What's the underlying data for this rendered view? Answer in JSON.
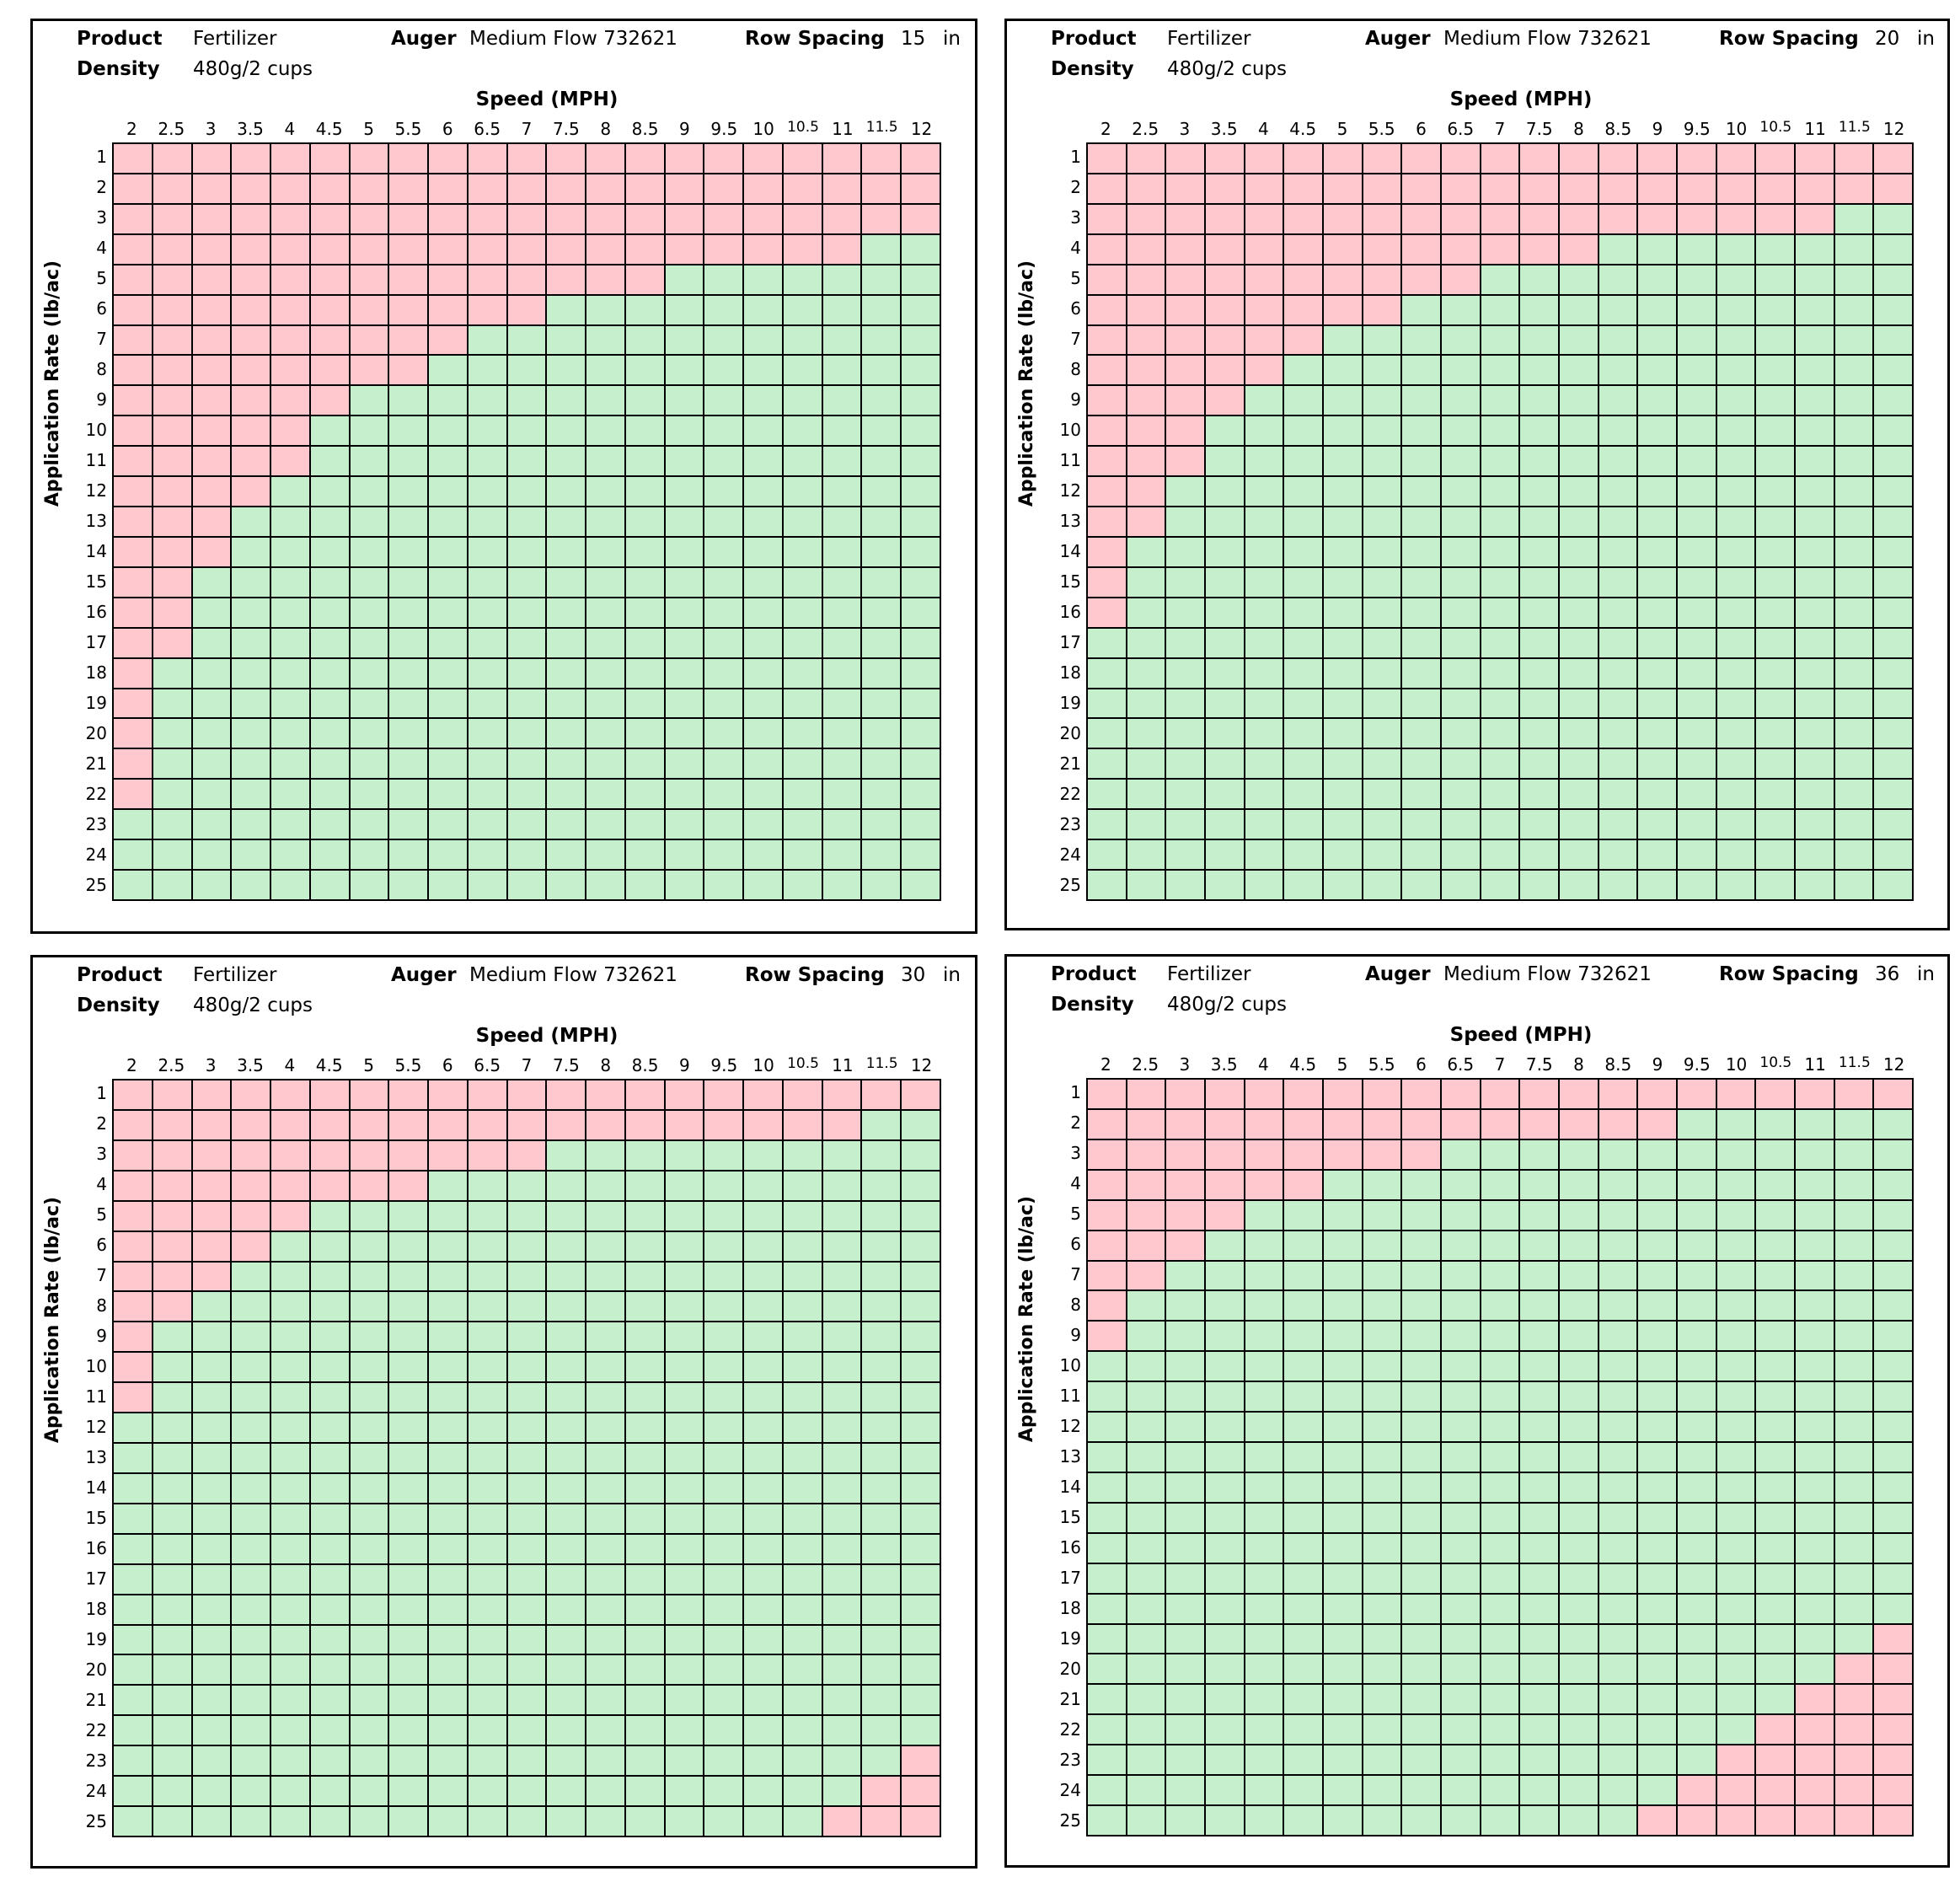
{
  "labels": {
    "product": "Product",
    "density": "Density",
    "auger": "Auger",
    "row_spacing": "Row Spacing",
    "unit": "in",
    "speed_title": "Speed (MPH)",
    "y_label": "Application Rate (lb/ac)"
  },
  "colors": {
    "ok": "#c6efce",
    "not_ok": "#ffc7ce"
  },
  "chart_data": [
    {
      "type": "heatmap",
      "product": "Fertilizer",
      "density": "480g/2 cups",
      "auger": "Medium Flow 732621",
      "row_spacing": "15",
      "x": [
        "2",
        "2.5",
        "3",
        "3.5",
        "4",
        "4.5",
        "5",
        "5.5",
        "6",
        "6.5",
        "7",
        "7.5",
        "8",
        "8.5",
        "9",
        "9.5",
        "10",
        "10.5",
        "11",
        "11.5",
        "12"
      ],
      "y": [
        1,
        2,
        3,
        4,
        5,
        6,
        7,
        8,
        9,
        10,
        11,
        12,
        13,
        14,
        15,
        16,
        17,
        18,
        19,
        20,
        21,
        22,
        23,
        24,
        25
      ],
      "min_rate_by_speed": [
        23,
        18,
        15,
        13,
        12,
        10,
        9,
        9,
        8,
        7,
        7,
        6,
        6,
        6,
        5,
        5,
        5,
        5,
        5,
        4,
        4
      ],
      "max_rate_by_speed": [
        25,
        25,
        25,
        25,
        25,
        25,
        25,
        25,
        25,
        25,
        25,
        25,
        25,
        25,
        25,
        25,
        25,
        25,
        25,
        25,
        25
      ]
    },
    {
      "type": "heatmap",
      "product": "Fertilizer",
      "density": "480g/2 cups",
      "auger": "Medium Flow 732621",
      "row_spacing": "20",
      "x": [
        "2",
        "2.5",
        "3",
        "3.5",
        "4",
        "4.5",
        "5",
        "5.5",
        "6",
        "6.5",
        "7",
        "7.5",
        "8",
        "8.5",
        "9",
        "9.5",
        "10",
        "10.5",
        "11",
        "11.5",
        "12"
      ],
      "y": [
        1,
        2,
        3,
        4,
        5,
        6,
        7,
        8,
        9,
        10,
        11,
        12,
        13,
        14,
        15,
        16,
        17,
        18,
        19,
        20,
        21,
        22,
        23,
        24,
        25
      ],
      "min_rate_by_speed": [
        17,
        14,
        12,
        10,
        9,
        8,
        7,
        7,
        6,
        6,
        5,
        5,
        5,
        4,
        4,
        4,
        4,
        4,
        4,
        3,
        3
      ],
      "max_rate_by_speed": [
        25,
        25,
        25,
        25,
        25,
        25,
        25,
        25,
        25,
        25,
        25,
        25,
        25,
        25,
        25,
        25,
        25,
        25,
        25,
        25,
        25
      ]
    },
    {
      "type": "heatmap",
      "product": "Fertilizer",
      "density": "480g/2 cups",
      "auger": "Medium Flow 732621",
      "row_spacing": "30",
      "x": [
        "2",
        "2.5",
        "3",
        "3.5",
        "4",
        "4.5",
        "5",
        "5.5",
        "6",
        "6.5",
        "7",
        "7.5",
        "8",
        "8.5",
        "9",
        "9.5",
        "10",
        "10.5",
        "11",
        "11.5",
        "12"
      ],
      "y": [
        1,
        2,
        3,
        4,
        5,
        6,
        7,
        8,
        9,
        10,
        11,
        12,
        13,
        14,
        15,
        16,
        17,
        18,
        19,
        20,
        21,
        22,
        23,
        24,
        25
      ],
      "min_rate_by_speed": [
        12,
        9,
        8,
        7,
        6,
        5,
        5,
        5,
        4,
        4,
        4,
        3,
        3,
        3,
        3,
        3,
        3,
        3,
        3,
        2,
        2
      ],
      "max_rate_by_speed": [
        25,
        25,
        25,
        25,
        25,
        25,
        25,
        25,
        25,
        25,
        25,
        25,
        25,
        25,
        25,
        25,
        25,
        25,
        24,
        23,
        22
      ]
    },
    {
      "type": "heatmap",
      "product": "Fertilizer",
      "density": "480g/2 cups",
      "auger": "Medium Flow 732621",
      "row_spacing": "36",
      "x": [
        "2",
        "2.5",
        "3",
        "3.5",
        "4",
        "4.5",
        "5",
        "5.5",
        "6",
        "6.5",
        "7",
        "7.5",
        "8",
        "8.5",
        "9",
        "9.5",
        "10",
        "10.5",
        "11",
        "11.5",
        "12"
      ],
      "y": [
        1,
        2,
        3,
        4,
        5,
        6,
        7,
        8,
        9,
        10,
        11,
        12,
        13,
        14,
        15,
        16,
        17,
        18,
        19,
        20,
        21,
        22,
        23,
        24,
        25
      ],
      "min_rate_by_speed": [
        10,
        8,
        7,
        6,
        5,
        5,
        4,
        4,
        4,
        3,
        3,
        3,
        3,
        3,
        3,
        2,
        2,
        2,
        2,
        2,
        2
      ],
      "max_rate_by_speed": [
        25,
        25,
        25,
        25,
        25,
        25,
        25,
        25,
        25,
        25,
        25,
        25,
        25,
        25,
        24,
        23,
        22,
        21,
        20,
        19,
        18
      ]
    }
  ]
}
